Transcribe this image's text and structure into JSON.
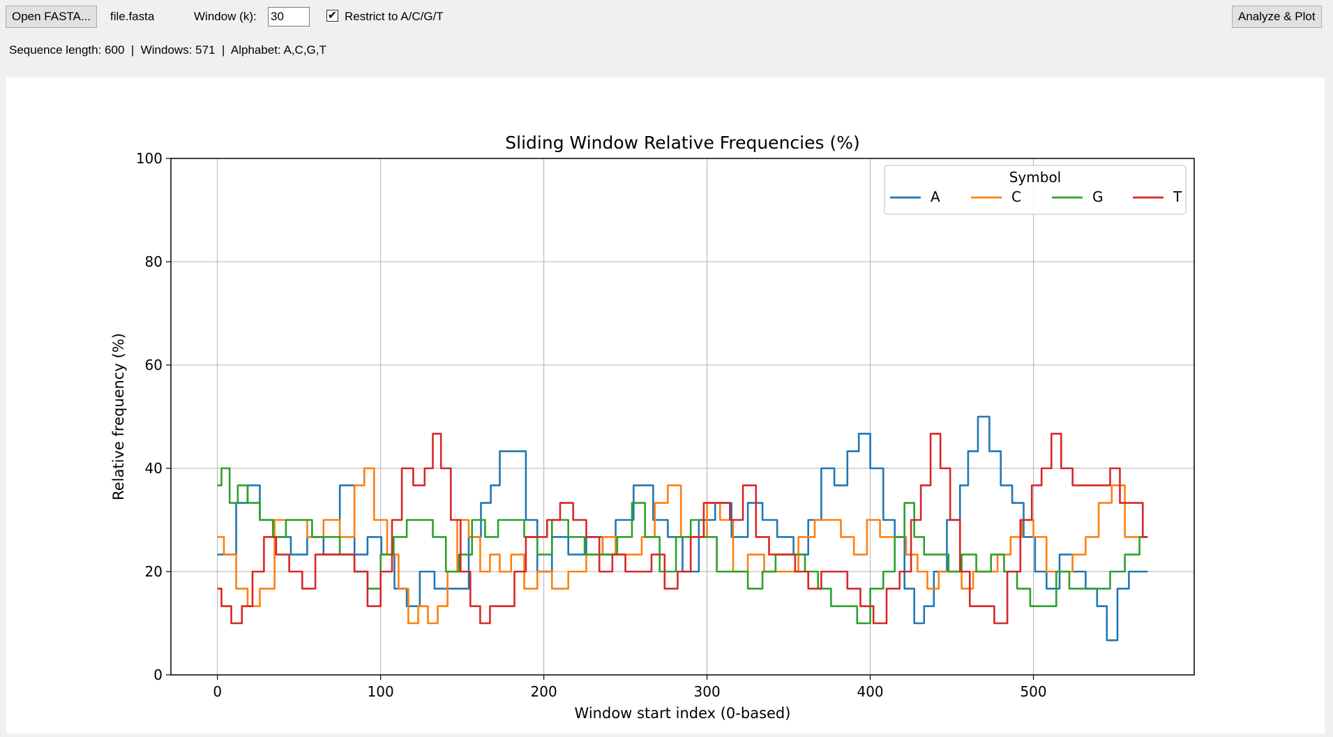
{
  "toolbar": {
    "open_label": "Open FASTA...",
    "filename": "file.fasta",
    "window_label": "Window (k):",
    "window_value": "30",
    "restrict_checked": true,
    "restrict_label": "Restrict to A/C/G/T",
    "analyze_label": "Analyze & Plot"
  },
  "status": {
    "text": "Sequence length: 600  |  Windows: 571  |  Alphabet: A,C,G,T"
  },
  "chart_data": {
    "type": "line",
    "title": "Sliding Window Relative Frequencies (%)",
    "xlabel": "Window start index (0-based)",
    "ylabel": "Relative frequency (%)",
    "xlim": [
      -28.5,
      598.5
    ],
    "ylim": [
      0,
      100
    ],
    "xticks": [
      0,
      100,
      200,
      300,
      400,
      500
    ],
    "yticks": [
      0,
      20,
      40,
      60,
      80,
      100
    ],
    "grid": true,
    "legend": {
      "title": "Symbol",
      "position": "top-right",
      "ncol": 4
    },
    "series": [
      {
        "name": "A",
        "color": "#1f77b4",
        "points": [
          [
            0,
            23.3
          ],
          [
            8,
            23.3
          ],
          [
            15,
            33.3
          ],
          [
            22,
            36.7
          ],
          [
            30,
            30
          ],
          [
            40,
            26.7
          ],
          [
            50,
            23.3
          ],
          [
            60,
            26.7
          ],
          [
            70,
            23.3
          ],
          [
            80,
            36.7
          ],
          [
            88,
            23.3
          ],
          [
            96,
            26.7
          ],
          [
            105,
            23.3
          ],
          [
            112,
            16.7
          ],
          [
            120,
            13.3
          ],
          [
            128,
            20
          ],
          [
            138,
            16.7
          ],
          [
            150,
            16.7
          ],
          [
            158,
            26.7
          ],
          [
            165,
            33.3
          ],
          [
            170,
            36.7
          ],
          [
            176,
            43.3
          ],
          [
            186,
            43.3
          ],
          [
            192,
            30
          ],
          [
            200,
            20
          ],
          [
            210,
            26.7
          ],
          [
            220,
            23.3
          ],
          [
            232,
            26.7
          ],
          [
            240,
            23.3
          ],
          [
            248,
            30
          ],
          [
            262,
            36.7
          ],
          [
            272,
            30
          ],
          [
            280,
            26.7
          ],
          [
            290,
            20
          ],
          [
            300,
            30
          ],
          [
            310,
            33.3
          ],
          [
            320,
            26.7
          ],
          [
            330,
            33.3
          ],
          [
            338,
            30
          ],
          [
            348,
            26.7
          ],
          [
            358,
            23.3
          ],
          [
            366,
            30
          ],
          [
            374,
            40
          ],
          [
            382,
            36.7
          ],
          [
            390,
            43.3
          ],
          [
            396,
            46.7
          ],
          [
            404,
            40
          ],
          [
            412,
            30
          ],
          [
            418,
            26.7
          ],
          [
            424,
            16.7
          ],
          [
            430,
            10
          ],
          [
            436,
            13.3
          ],
          [
            442,
            20
          ],
          [
            452,
            30
          ],
          [
            458,
            36.7
          ],
          [
            462,
            43.3
          ],
          [
            470,
            50
          ],
          [
            476,
            43.3
          ],
          [
            484,
            36.7
          ],
          [
            490,
            33.3
          ],
          [
            498,
            26.7
          ],
          [
            504,
            20
          ],
          [
            512,
            16.7
          ],
          [
            520,
            23.3
          ],
          [
            528,
            20
          ],
          [
            536,
            16.7
          ],
          [
            542,
            13.3
          ],
          [
            548,
            6.7
          ],
          [
            555,
            16.7
          ],
          [
            562,
            20
          ],
          [
            570,
            20
          ]
        ]
      },
      {
        "name": "C",
        "color": "#ff7f0e",
        "points": [
          [
            0,
            26.7
          ],
          [
            8,
            23.3
          ],
          [
            15,
            16.7
          ],
          [
            22,
            13.3
          ],
          [
            30,
            16.7
          ],
          [
            40,
            30
          ],
          [
            50,
            30
          ],
          [
            60,
            26.7
          ],
          [
            70,
            30
          ],
          [
            80,
            26.7
          ],
          [
            88,
            36.7
          ],
          [
            92,
            40
          ],
          [
            100,
            30
          ],
          [
            108,
            23.3
          ],
          [
            114,
            16.7
          ],
          [
            120,
            10
          ],
          [
            126,
            13.3
          ],
          [
            132,
            10
          ],
          [
            138,
            13.3
          ],
          [
            144,
            20
          ],
          [
            150,
            30
          ],
          [
            158,
            26.7
          ],
          [
            164,
            20
          ],
          [
            170,
            23.3
          ],
          [
            176,
            20
          ],
          [
            184,
            23.3
          ],
          [
            192,
            16.7
          ],
          [
            200,
            20
          ],
          [
            210,
            16.7
          ],
          [
            220,
            20
          ],
          [
            232,
            23.3
          ],
          [
            240,
            26.7
          ],
          [
            248,
            23.3
          ],
          [
            256,
            23.3
          ],
          [
            264,
            26.7
          ],
          [
            272,
            33.3
          ],
          [
            280,
            36.7
          ],
          [
            288,
            26.7
          ],
          [
            296,
            26.7
          ],
          [
            304,
            33.3
          ],
          [
            312,
            30
          ],
          [
            320,
            20
          ],
          [
            330,
            23.3
          ],
          [
            340,
            20
          ],
          [
            350,
            20
          ],
          [
            362,
            26.7
          ],
          [
            370,
            30
          ],
          [
            378,
            30
          ],
          [
            386,
            26.7
          ],
          [
            394,
            23.3
          ],
          [
            402,
            30
          ],
          [
            410,
            26.7
          ],
          [
            418,
            26.7
          ],
          [
            426,
            23.3
          ],
          [
            432,
            20
          ],
          [
            438,
            16.7
          ],
          [
            446,
            20
          ],
          [
            452,
            20
          ],
          [
            460,
            16.7
          ],
          [
            466,
            20
          ],
          [
            474,
            20
          ],
          [
            482,
            23.3
          ],
          [
            490,
            26.7
          ],
          [
            496,
            30
          ],
          [
            504,
            26.7
          ],
          [
            512,
            20
          ],
          [
            520,
            20
          ],
          [
            528,
            23.3
          ],
          [
            536,
            26.7
          ],
          [
            544,
            33.3
          ],
          [
            552,
            36.7
          ],
          [
            560,
            26.7
          ],
          [
            570,
            26.7
          ]
        ]
      },
      {
        "name": "G",
        "color": "#2ca02c",
        "points": [
          [
            0,
            36.7
          ],
          [
            5,
            40
          ],
          [
            10,
            33.3
          ],
          [
            15,
            36.7
          ],
          [
            22,
            33.3
          ],
          [
            30,
            30
          ],
          [
            38,
            26.7
          ],
          [
            46,
            30
          ],
          [
            54,
            30
          ],
          [
            62,
            26.7
          ],
          [
            70,
            26.7
          ],
          [
            80,
            23.3
          ],
          [
            88,
            20
          ],
          [
            96,
            16.7
          ],
          [
            104,
            23.3
          ],
          [
            112,
            26.7
          ],
          [
            120,
            30
          ],
          [
            128,
            30
          ],
          [
            136,
            26.7
          ],
          [
            144,
            20
          ],
          [
            152,
            23.3
          ],
          [
            160,
            30
          ],
          [
            168,
            26.7
          ],
          [
            176,
            30
          ],
          [
            184,
            30
          ],
          [
            192,
            26.7
          ],
          [
            200,
            23.3
          ],
          [
            210,
            30
          ],
          [
            220,
            26.7
          ],
          [
            230,
            23.3
          ],
          [
            240,
            23.3
          ],
          [
            250,
            26.7
          ],
          [
            258,
            33.3
          ],
          [
            266,
            26.7
          ],
          [
            276,
            20
          ],
          [
            286,
            26.7
          ],
          [
            294,
            30
          ],
          [
            302,
            26.7
          ],
          [
            310,
            20
          ],
          [
            320,
            20
          ],
          [
            330,
            16.7
          ],
          [
            338,
            20
          ],
          [
            346,
            23.3
          ],
          [
            356,
            23.3
          ],
          [
            364,
            20
          ],
          [
            372,
            16.7
          ],
          [
            380,
            13.3
          ],
          [
            388,
            13.3
          ],
          [
            396,
            10
          ],
          [
            404,
            16.7
          ],
          [
            412,
            20
          ],
          [
            418,
            26.7
          ],
          [
            424,
            33.3
          ],
          [
            430,
            26.7
          ],
          [
            436,
            23.3
          ],
          [
            444,
            23.3
          ],
          [
            452,
            20
          ],
          [
            460,
            23.3
          ],
          [
            470,
            20
          ],
          [
            478,
            23.3
          ],
          [
            486,
            20
          ],
          [
            494,
            16.7
          ],
          [
            502,
            13.3
          ],
          [
            510,
            13.3
          ],
          [
            518,
            20
          ],
          [
            526,
            16.7
          ],
          [
            534,
            16.7
          ],
          [
            542,
            16.7
          ],
          [
            552,
            20
          ],
          [
            560,
            23.3
          ],
          [
            570,
            26.7
          ]
        ]
      },
      {
        "name": "T",
        "color": "#d62728",
        "points": [
          [
            0,
            16.7
          ],
          [
            5,
            13.3
          ],
          [
            12,
            10
          ],
          [
            18,
            13.3
          ],
          [
            25,
            20
          ],
          [
            32,
            26.7
          ],
          [
            40,
            23.3
          ],
          [
            48,
            20
          ],
          [
            56,
            16.7
          ],
          [
            64,
            23.3
          ],
          [
            72,
            23.3
          ],
          [
            80,
            23.3
          ],
          [
            88,
            20
          ],
          [
            96,
            13.3
          ],
          [
            104,
            20
          ],
          [
            110,
            30
          ],
          [
            116,
            40
          ],
          [
            124,
            36.7
          ],
          [
            130,
            40
          ],
          [
            134,
            46.7
          ],
          [
            140,
            40
          ],
          [
            146,
            30
          ],
          [
            152,
            20
          ],
          [
            158,
            13.3
          ],
          [
            164,
            10
          ],
          [
            170,
            13.3
          ],
          [
            178,
            13.3
          ],
          [
            186,
            20
          ],
          [
            192,
            26.7
          ],
          [
            198,
            26.7
          ],
          [
            206,
            30
          ],
          [
            214,
            33.3
          ],
          [
            222,
            30
          ],
          [
            230,
            26.7
          ],
          [
            238,
            20
          ],
          [
            246,
            23.3
          ],
          [
            254,
            20
          ],
          [
            262,
            20
          ],
          [
            270,
            23.3
          ],
          [
            278,
            16.7
          ],
          [
            286,
            20
          ],
          [
            294,
            26.7
          ],
          [
            302,
            33.3
          ],
          [
            310,
            33.3
          ],
          [
            318,
            30
          ],
          [
            326,
            36.7
          ],
          [
            334,
            26.7
          ],
          [
            342,
            23.3
          ],
          [
            350,
            23.3
          ],
          [
            358,
            20
          ],
          [
            366,
            16.7
          ],
          [
            374,
            20
          ],
          [
            382,
            20
          ],
          [
            390,
            16.7
          ],
          [
            398,
            13.3
          ],
          [
            406,
            10
          ],
          [
            414,
            16.7
          ],
          [
            422,
            20
          ],
          [
            428,
            30
          ],
          [
            434,
            36.7
          ],
          [
            440,
            46.7
          ],
          [
            446,
            40
          ],
          [
            452,
            30
          ],
          [
            458,
            20
          ],
          [
            464,
            13.3
          ],
          [
            472,
            13.3
          ],
          [
            480,
            10
          ],
          [
            488,
            20
          ],
          [
            496,
            30
          ],
          [
            502,
            36.7
          ],
          [
            508,
            40
          ],
          [
            514,
            46.7
          ],
          [
            520,
            40
          ],
          [
            528,
            36.7
          ],
          [
            536,
            36.7
          ],
          [
            544,
            36.7
          ],
          [
            550,
            40
          ],
          [
            556,
            33.3
          ],
          [
            564,
            33.3
          ],
          [
            570,
            26.7
          ]
        ]
      }
    ]
  }
}
